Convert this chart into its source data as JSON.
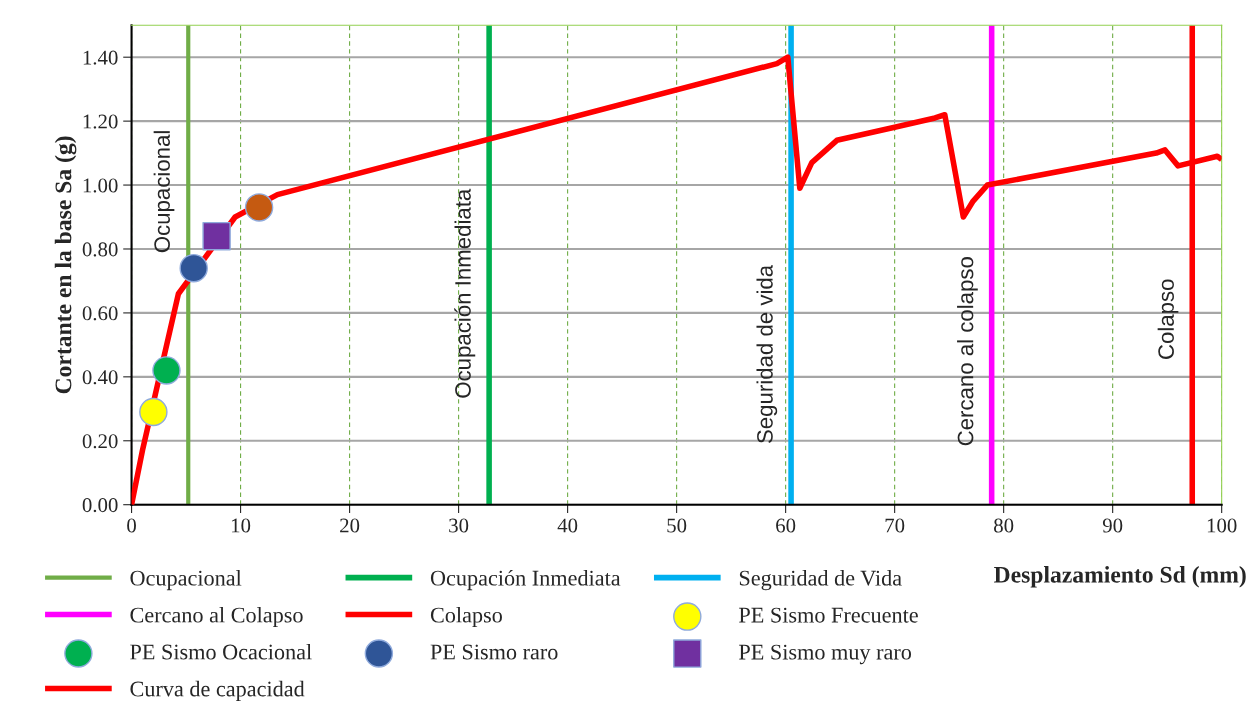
{
  "chart_data": {
    "type": "line",
    "xlabel": "Desplazamiento Sd (mm)",
    "ylabel": "Cortante en la base Sa (g)",
    "xlim": [
      0,
      100
    ],
    "ylim": [
      0,
      1.5
    ],
    "xticks": [
      0,
      10,
      20,
      30,
      40,
      50,
      60,
      70,
      80,
      90,
      100
    ],
    "yticks": [
      {
        "value": 0,
        "label": "0.00"
      },
      {
        "value": 0.2,
        "label": "0.20"
      },
      {
        "value": 0.4,
        "label": "0.40"
      },
      {
        "value": 0.6,
        "label": "0.60"
      },
      {
        "value": 0.8,
        "label": "0.80"
      },
      {
        "value": 1.0,
        "label": "1.00"
      },
      {
        "value": 1.2,
        "label": "1.20"
      },
      {
        "value": 1.4,
        "label": "1.40"
      }
    ],
    "grid": true,
    "legend": "bottom",
    "series": [
      {
        "name": "Ocupacional",
        "color": "#70ad47",
        "x": [
          5.2,
          5.2
        ],
        "values": [
          0,
          1.5
        ]
      },
      {
        "name": "Ocupación Inmediata",
        "color": "#00b050",
        "x": [
          32.8,
          32.8
        ],
        "values": [
          0,
          1.5
        ]
      },
      {
        "name": "Seguridad de Vida",
        "color": "#00b0f0",
        "x": [
          60.5,
          60.5
        ],
        "values": [
          0,
          1.5
        ]
      },
      {
        "name": "Cercano al Colapso",
        "color": "#ff00ff",
        "x": [
          78.9,
          78.9
        ],
        "values": [
          0,
          1.5
        ]
      },
      {
        "name": "Colapso",
        "color": "#ff0000",
        "x": [
          97.3,
          97.3
        ],
        "values": [
          0,
          1.5
        ]
      },
      {
        "name": "PE Sismo Frecuente",
        "type": "scatter",
        "marker": "circle",
        "color": "#ffff00",
        "x": [
          2.0
        ],
        "values": [
          0.29
        ]
      },
      {
        "name": "PE Sismo Ocacional",
        "type": "scatter",
        "marker": "circle",
        "color": "#00b050",
        "x": [
          3.2
        ],
        "values": [
          0.42
        ]
      },
      {
        "name": "PE Sismo raro",
        "type": "scatter",
        "marker": "circle",
        "color": "#2f5597",
        "x": [
          5.7
        ],
        "values": [
          0.74
        ]
      },
      {
        "name": "PE Sismo muy raro",
        "type": "scatter",
        "marker": "square",
        "color": "#7030a0",
        "x": [
          7.8
        ],
        "values": [
          0.84
        ]
      },
      {
        "type": "scatter",
        "marker": "circle",
        "color": "#c55a11",
        "x": [
          11.7
        ],
        "values": [
          0.93
        ]
      },
      {
        "name": "Curva de capacidad",
        "color": "#ff0000",
        "x": [
          0,
          1.0,
          4.3,
          9.5,
          13.38,
          59.2,
          60.2,
          61.3,
          62.4,
          64.7,
          69.9,
          73.7,
          74.6,
          76.3,
          77.2,
          78.5,
          94.0,
          94.8,
          96.0,
          99.6,
          100
        ],
        "values": [
          0,
          0.17,
          0.66,
          0.9,
          0.97,
          1.38,
          1.4,
          0.99,
          1.07,
          1.14,
          1.18,
          1.21,
          1.22,
          0.9,
          0.95,
          1.0,
          1.1,
          1.11,
          1.06,
          1.09,
          1.08
        ]
      }
    ],
    "annotations": [
      {
        "text": "Ocupacional",
        "x": 5.2,
        "y": 0.98
      },
      {
        "text": "Ocupación Inmediata",
        "x": 32.8,
        "y": 0.66
      },
      {
        "text": "Seguridad de vida",
        "x": 60.5,
        "y": 0.47
      },
      {
        "text": "Cercano al colapso",
        "x": 78.9,
        "y": 0.48
      },
      {
        "text": "Colapso",
        "x": 97.3,
        "y": 0.58
      }
    ]
  }
}
